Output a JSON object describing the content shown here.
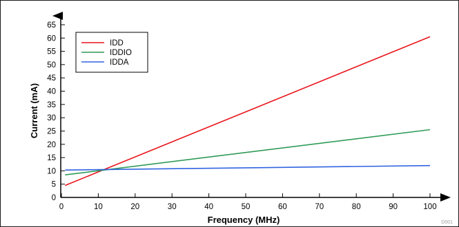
{
  "chart_data": {
    "type": "line",
    "title": "",
    "xlabel": "Frequency (MHz)",
    "ylabel": "Current (mA)",
    "xlim": [
      0,
      100
    ],
    "ylim": [
      0,
      65
    ],
    "x_ticks": [
      0,
      10,
      20,
      30,
      40,
      50,
      60,
      70,
      80,
      90,
      100
    ],
    "y_ticks": [
      0,
      5,
      10,
      15,
      20,
      25,
      30,
      35,
      40,
      45,
      50,
      55,
      60,
      65
    ],
    "grid": false,
    "legend_position": "top-left",
    "series": [
      {
        "name": "IDD",
        "color": "#e8141b",
        "x": [
          1,
          100
        ],
        "y": [
          4.5,
          60.5
        ]
      },
      {
        "name": "IDDIO",
        "color": "#2e9a57",
        "x": [
          1,
          100
        ],
        "y": [
          8.5,
          25.5
        ]
      },
      {
        "name": "IDDA",
        "color": "#2f63e0",
        "x": [
          1,
          100
        ],
        "y": [
          10.3,
          12
        ]
      }
    ],
    "annotation": "D001"
  }
}
